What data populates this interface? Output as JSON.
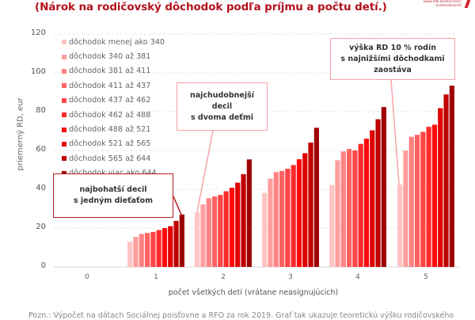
{
  "header": {
    "subtitle": "(Nárok na rodičovský dôchodok podľa príjmu a počtu detí.)",
    "logo_text_line1": "RADA PRE ROZPOČTOVÚ",
    "logo_text_line2": "ZODPOVEDNOSŤ"
  },
  "annotations": [
    {
      "line1": "najbohatší decil",
      "line2": "s jedným dieťaťom"
    },
    {
      "line1": "najchudobnejší decil",
      "line2": "s dvoma deťmi"
    },
    {
      "line1": "výška RD 10 % rodín",
      "line2": "s najnižšími dôchodkami",
      "line3": "zaostáva"
    }
  ],
  "footnote": "Pozn.: Výpočet na dátach Sociálnej poisťovne a RFO za rok 2019. Graf tak ukazuje teoretickú výšku rodičovského",
  "chart_data": {
    "type": "bar",
    "title": "(Nárok na rodičovský dôchodok podľa príjmu a počtu detí.)",
    "xlabel": "počet všetkých detí (vrátane neasignujúcich)",
    "ylabel": "priemerný RD, eur",
    "ylim": [
      0,
      120
    ],
    "yticks": [
      "0",
      "20",
      "40",
      "60",
      "80",
      "100",
      "120"
    ],
    "grid": true,
    "legend_position": "upper-left",
    "categories": [
      "0",
      "1",
      "2",
      "3",
      "4",
      "5"
    ],
    "series": [
      {
        "name": "dôchodok menej ako 340",
        "color": "#ffc4c4",
        "values": [
          0,
          13.0,
          28.2,
          38.1,
          42.2,
          42.4
        ]
      },
      {
        "name": "dôchodok 340  až 381",
        "color": "#ff9e9e",
        "values": [
          0,
          15.5,
          32.2,
          45.5,
          55.0,
          60.0
        ]
      },
      {
        "name": "dôchodok 381  až 411",
        "color": "#ff8282",
        "values": [
          0,
          17.0,
          35.4,
          48.9,
          59.5,
          67.1
        ]
      },
      {
        "name": "dôchodok 411  až 437",
        "color": "#ff6262",
        "values": [
          0,
          17.5,
          36.3,
          49.5,
          60.8,
          68.1
        ]
      },
      {
        "name": "dôchodok 437  až 462",
        "color": "#ff4545",
        "values": [
          0,
          18.0,
          37.1,
          50.6,
          60.0,
          69.6
        ]
      },
      {
        "name": "dôchodok 462  až 488",
        "color": "#ff2a2a",
        "values": [
          0,
          19.0,
          39.0,
          52.5,
          63.4,
          72.2
        ]
      },
      {
        "name": "dôchodok 488  až 521",
        "color": "#ff0a0a",
        "values": [
          0,
          20.0,
          40.8,
          55.5,
          66.1,
          73.3
        ]
      },
      {
        "name": "dôchodok 521  až 565",
        "color": "#e00000",
        "values": [
          0,
          21.0,
          43.4,
          58.6,
          70.4,
          81.8
        ]
      },
      {
        "name": "dôchodok 565  až 644",
        "color": "#c00000",
        "values": [
          0,
          23.7,
          47.8,
          64.1,
          76.1,
          88.9
        ]
      },
      {
        "name": "dôchodok viac ako 644",
        "color": "#9e0000",
        "values": [
          0,
          27.0,
          55.4,
          71.7,
          82.4,
          93.4
        ]
      }
    ],
    "annotations": [
      "najbohatší decil s jedným dieťaťom",
      "najchudobnejší decil s dvoma deťmi",
      "výška RD 10 % rodín s najnižšími dôchodkami zaostáva"
    ]
  }
}
